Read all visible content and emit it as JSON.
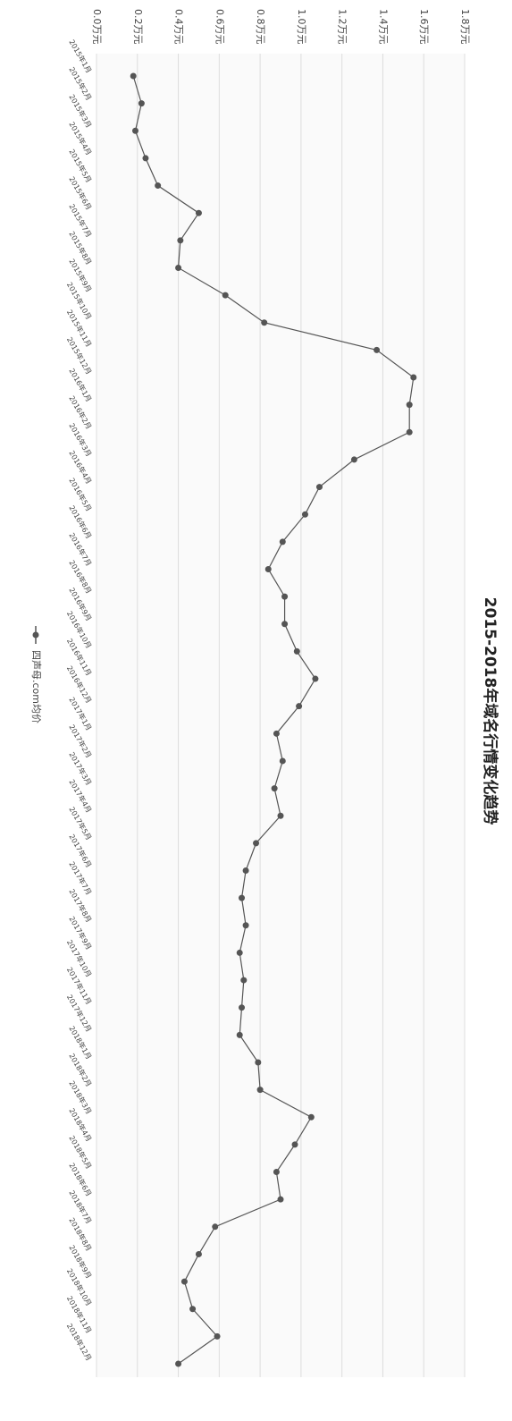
{
  "chart_data": {
    "type": "line",
    "title": "2015-2018年域名行情变化趋势",
    "categories": [
      "2015年1月",
      "2015年2月",
      "2015年3月",
      "2015年4月",
      "2015年5月",
      "2015年6月",
      "2015年7月",
      "2015年8月",
      "2015年9月",
      "2015年10月",
      "2015年11月",
      "2015年12月",
      "2016年1月",
      "2016年2月",
      "2016年3月",
      "2016年4月",
      "2016年5月",
      "2016年6月",
      "2016年7月",
      "2016年8月",
      "2016年9月",
      "2016年10月",
      "2016年11月",
      "2016年12月",
      "2017年1月",
      "2017年2月",
      "2017年3月",
      "2017年4月",
      "2017年5月",
      "2017年6月",
      "2017年7月",
      "2017年8月",
      "2017年9月",
      "2017年10月",
      "2017年11月",
      "2017年12月",
      "2018年1月",
      "2018年2月",
      "2018年3月",
      "2018年4月",
      "2018年5月",
      "2018年6月",
      "2018年7月",
      "2018年8月",
      "2018年9月",
      "2018年10月",
      "2018年11月",
      "2018年12月"
    ],
    "series": [
      {
        "name": "四声母.com均价",
        "color": "#555555",
        "values": [
          0.18,
          0.22,
          0.19,
          0.24,
          0.3,
          0.5,
          0.41,
          0.4,
          0.63,
          0.82,
          1.37,
          1.55,
          1.53,
          1.53,
          1.26,
          1.09,
          1.02,
          0.91,
          0.84,
          0.92,
          0.92,
          0.98,
          1.07,
          0.99,
          0.88,
          0.91,
          0.87,
          0.9,
          0.78,
          0.73,
          0.71,
          0.73,
          0.7,
          0.72,
          0.71,
          0.7,
          0.79,
          0.8,
          1.05,
          0.97,
          0.88,
          0.9,
          0.58,
          0.5,
          0.43,
          0.47,
          0.59,
          0.4
        ]
      }
    ],
    "ylim": [
      0,
      1.8
    ],
    "yticks": [
      {
        "value": 0,
        "label": "0.0万元"
      },
      {
        "value": 0.2,
        "label": "0.2万元"
      },
      {
        "value": 0.4,
        "label": "0.4万元"
      },
      {
        "value": 0.6,
        "label": "0.6万元"
      },
      {
        "value": 0.8,
        "label": "0.8万元"
      },
      {
        "value": 1.0,
        "label": "1.0万元"
      },
      {
        "value": 1.2,
        "label": "1.2万元"
      },
      {
        "value": 1.4,
        "label": "1.4万元"
      },
      {
        "value": 1.6,
        "label": "1.6万元"
      },
      {
        "value": 1.8,
        "label": "1.8万元"
      }
    ],
    "grid": true
  }
}
